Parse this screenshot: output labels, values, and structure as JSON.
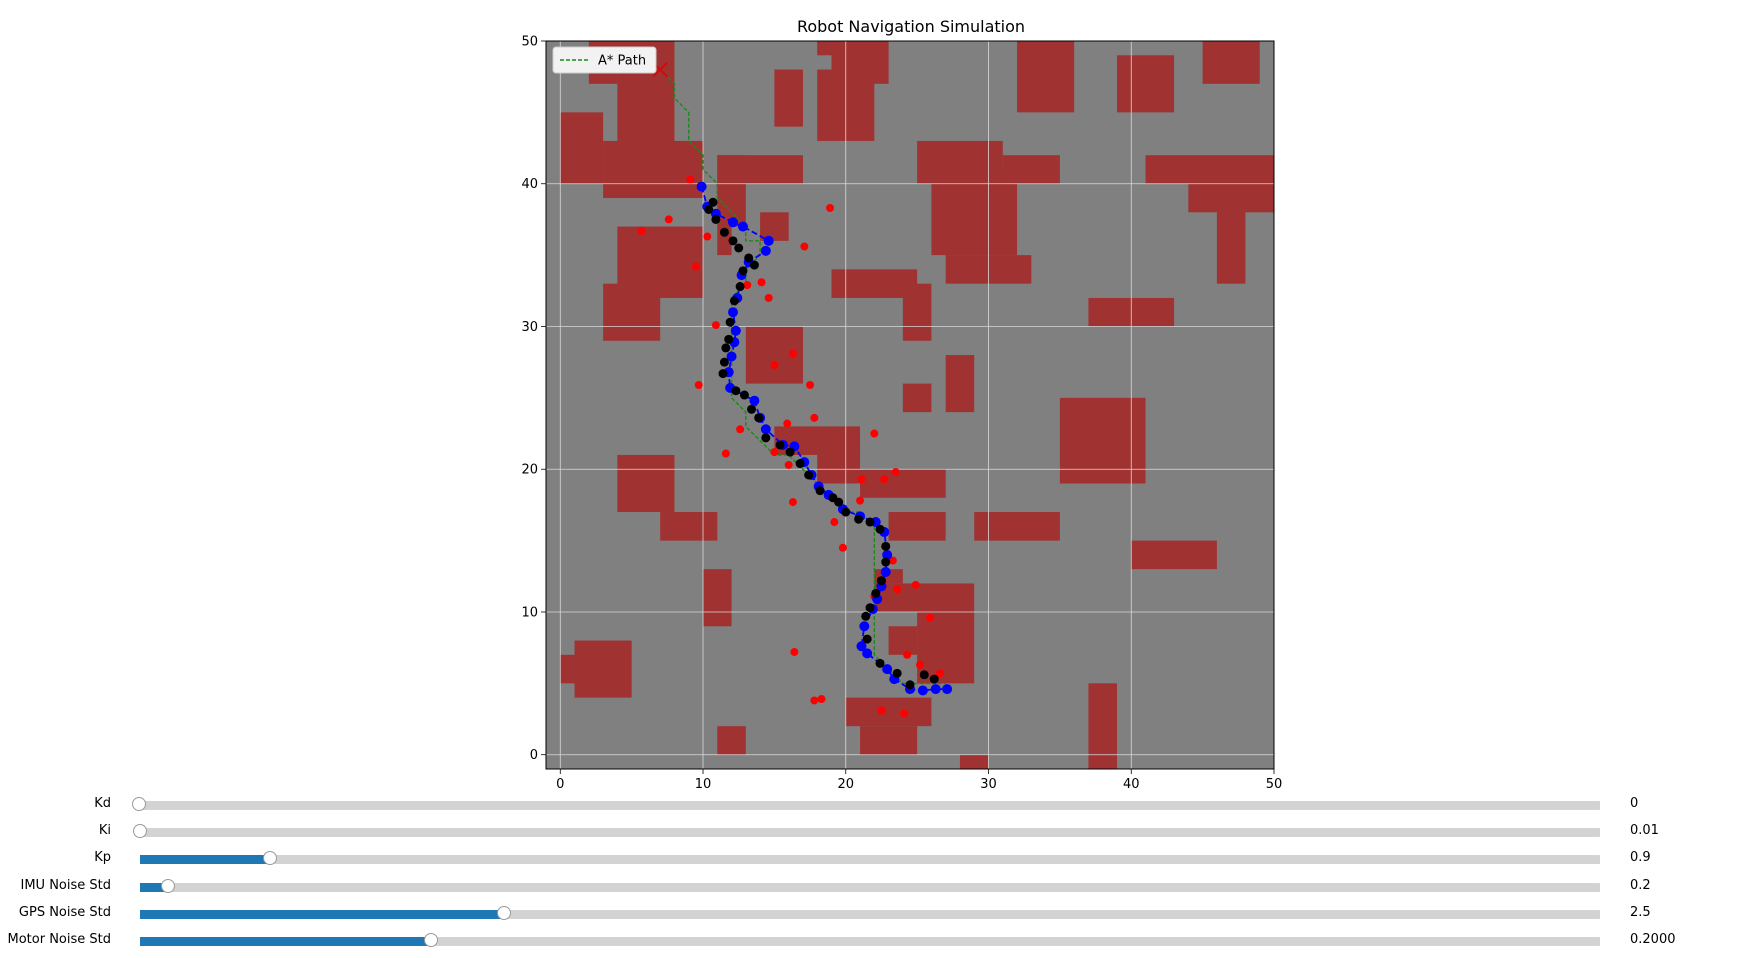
{
  "chart_data": {
    "type": "scatter",
    "title": "Robot Navigation Simulation",
    "xlim": [
      -1,
      50
    ],
    "ylim": [
      -1,
      50
    ],
    "x_ticks": [
      0,
      10,
      20,
      30,
      40,
      50
    ],
    "y_ticks": [
      0,
      10,
      20,
      30,
      40,
      50
    ],
    "grid": true,
    "background_color": "#808080",
    "legend": {
      "position": "top-left",
      "entries": [
        {
          "label": "A* Path",
          "style": "dashed-line",
          "color": "#1a8a1a"
        }
      ]
    },
    "colors": {
      "obstacle": "#a03232",
      "path": "#1a8a1a",
      "gps": "#ff0000",
      "estimate": "#0000ff",
      "true_pos": "#000000",
      "goal": "#e00000"
    },
    "obstacles": [
      [
        2,
        47,
        2,
        3
      ],
      [
        4,
        42,
        4,
        8
      ],
      [
        0,
        40,
        3,
        5
      ],
      [
        3,
        39,
        7,
        4
      ],
      [
        11,
        37,
        2,
        5
      ],
      [
        11,
        35,
        1,
        2
      ],
      [
        15,
        44,
        2,
        4
      ],
      [
        19,
        47,
        4,
        3
      ],
      [
        18,
        49,
        4,
        2
      ],
      [
        18,
        43,
        4,
        5
      ],
      [
        11,
        40,
        6,
        2
      ],
      [
        14,
        36,
        2,
        2
      ],
      [
        4,
        32,
        6,
        5
      ],
      [
        3,
        29,
        4,
        4
      ],
      [
        13,
        26,
        4,
        4
      ],
      [
        19,
        32,
        6,
        2
      ],
      [
        24,
        29,
        2,
        4
      ],
      [
        27,
        33,
        6,
        2
      ],
      [
        26,
        35,
        6,
        6
      ],
      [
        25,
        40,
        6,
        3
      ],
      [
        31,
        40,
        4,
        2
      ],
      [
        32,
        45,
        4,
        6
      ],
      [
        39,
        45,
        4,
        4
      ],
      [
        45,
        47,
        4,
        3
      ],
      [
        41,
        40,
        9,
        2
      ],
      [
        44,
        38,
        6,
        2
      ],
      [
        46,
        33,
        2,
        6
      ],
      [
        37,
        30,
        6,
        2
      ],
      [
        27,
        24,
        2,
        4
      ],
      [
        24,
        24,
        2,
        2
      ],
      [
        35,
        19,
        6,
        6
      ],
      [
        15,
        21,
        6,
        2
      ],
      [
        18,
        19,
        3,
        2
      ],
      [
        21,
        18,
        6,
        2
      ],
      [
        4,
        17,
        4,
        4
      ],
      [
        7,
        15,
        4,
        2
      ],
      [
        23,
        15,
        4,
        2
      ],
      [
        29,
        15,
        6,
        2
      ],
      [
        40,
        13,
        6,
        2
      ],
      [
        10,
        9,
        2,
        4
      ],
      [
        22,
        10,
        7,
        2
      ],
      [
        22,
        12,
        2,
        1
      ],
      [
        23,
        7,
        2,
        2
      ],
      [
        25,
        5,
        4,
        5
      ],
      [
        0,
        5,
        1,
        2
      ],
      [
        1,
        4,
        4,
        4
      ],
      [
        20,
        2,
        6,
        2
      ],
      [
        21,
        0,
        4,
        2
      ],
      [
        11,
        0,
        2,
        2
      ],
      [
        28,
        -1,
        2,
        1
      ],
      [
        37,
        -1,
        2,
        6
      ]
    ],
    "series": [
      {
        "name": "A* Path",
        "type": "dashed-line",
        "x": [
          7,
          8,
          8,
          9,
          9,
          10,
          10,
          11,
          11,
          12,
          13,
          13,
          14,
          14,
          13,
          13,
          12,
          12,
          12,
          12,
          12,
          13,
          13,
          14,
          15,
          16,
          17,
          18,
          19,
          20,
          21,
          22,
          22,
          22,
          22,
          22,
          22,
          22,
          23,
          24,
          25,
          26,
          27
        ],
        "y": [
          48,
          47,
          46,
          45,
          43,
          42,
          41,
          40,
          39,
          38,
          37,
          36,
          36,
          35,
          34,
          33,
          32,
          31,
          30,
          27,
          25,
          24,
          23,
          22,
          21,
          21,
          20,
          19,
          18,
          17,
          17,
          16,
          15,
          13,
          11,
          10,
          8,
          7,
          6,
          5,
          5,
          5,
          5
        ]
      },
      {
        "name": "",
        "type": "scatter",
        "color": "#ff0000",
        "x": [
          9.1,
          18.9,
          7.6,
          5.7,
          10.3,
          17.1,
          9.5,
          14.1,
          13.1,
          14.6,
          10.9,
          16.3,
          15.0,
          9.7,
          17.5,
          12.6,
          15.9,
          17.8,
          22.0,
          11.6,
          15.0,
          16.0,
          23.5,
          21.1,
          22.7,
          16.3,
          21.0,
          19.2,
          19.8,
          23.3,
          23.6,
          24.9,
          22.0,
          25.9,
          16.4,
          24.3,
          25.2,
          26.6,
          17.8,
          18.3,
          22.5,
          24.1
        ],
        "y": [
          40.3,
          38.3,
          37.5,
          36.7,
          36.3,
          35.6,
          34.2,
          33.1,
          32.9,
          32.0,
          30.1,
          28.1,
          27.3,
          25.9,
          25.9,
          22.8,
          23.2,
          23.6,
          22.5,
          21.1,
          21.2,
          20.3,
          19.8,
          19.3,
          19.3,
          17.7,
          17.8,
          16.3,
          14.5,
          13.6,
          11.6,
          11.9,
          11.1,
          9.6,
          7.2,
          7.0,
          6.3,
          5.7,
          3.8,
          3.9,
          3.1,
          2.9
        ]
      },
      {
        "name": "",
        "type": "scatter",
        "color": "#0000ff",
        "x": [
          9.9,
          10.3,
          10.9,
          12.1,
          12.8,
          14.6,
          14.4,
          13.2,
          12.7,
          12.4,
          12.1,
          12.3,
          12.2,
          12.0,
          11.8,
          11.9,
          13.6,
          14.0,
          14.4,
          15.6,
          16.4,
          17.1,
          17.6,
          18.1,
          18.8,
          19.8,
          21.0,
          22.1,
          22.7,
          22.9,
          22.8,
          22.5,
          22.2,
          21.9,
          21.3,
          21.1,
          21.5,
          22.9,
          23.4,
          24.5,
          25.4,
          26.3,
          27.1
        ],
        "y": [
          39.8,
          38.4,
          37.9,
          37.3,
          37.0,
          36.0,
          35.3,
          34.5,
          33.6,
          32.0,
          31.0,
          29.7,
          28.9,
          27.9,
          26.8,
          25.7,
          24.8,
          23.6,
          22.8,
          21.7,
          21.6,
          20.5,
          19.6,
          18.8,
          18.2,
          17.2,
          16.7,
          16.3,
          15.6,
          14.0,
          12.8,
          11.8,
          10.9,
          10.2,
          9.0,
          7.6,
          7.1,
          6.0,
          5.3,
          4.6,
          4.5,
          4.6,
          4.6
        ]
      },
      {
        "name": "",
        "type": "scatter",
        "color": "#000000",
        "x": [
          10.7,
          10.4,
          10.9,
          11.5,
          12.1,
          12.5,
          13.2,
          13.6,
          12.8,
          12.6,
          12.2,
          11.9,
          11.8,
          11.6,
          11.5,
          11.4,
          12.3,
          12.9,
          13.4,
          13.9,
          14.4,
          15.4,
          16.1,
          16.8,
          17.4,
          18.2,
          19.1,
          19.5,
          20.0,
          20.9,
          21.7,
          22.4,
          22.8,
          22.8,
          22.5,
          22.1,
          21.7,
          21.4,
          21.5,
          22.4,
          23.6,
          24.5,
          25.5,
          26.2
        ],
        "y": [
          38.7,
          38.2,
          37.5,
          36.6,
          36.0,
          35.5,
          34.8,
          34.3,
          33.9,
          32.8,
          31.8,
          30.3,
          29.1,
          28.5,
          27.5,
          26.7,
          25.5,
          25.2,
          24.2,
          23.6,
          22.2,
          21.7,
          21.2,
          20.4,
          19.6,
          18.5,
          18.0,
          17.7,
          17.0,
          16.5,
          16.3,
          15.8,
          14.6,
          13.5,
          12.2,
          11.3,
          10.3,
          9.7,
          8.1,
          6.4,
          5.7,
          4.9,
          5.6,
          5.3
        ]
      }
    ],
    "goal_marker": {
      "x": 7,
      "y": 48,
      "marker": "x"
    }
  },
  "sliders": [
    {
      "label": "Kd",
      "value": 0,
      "display": "0",
      "fill_fraction": 0.0
    },
    {
      "label": "Ki",
      "value": 0.01,
      "display": "0.01",
      "fill_fraction": 0.001
    },
    {
      "label": "Kp",
      "value": 0.9,
      "display": "0.9",
      "fill_fraction": 0.09
    },
    {
      "label": "IMU Noise Std",
      "value": 0.2,
      "display": "0.2",
      "fill_fraction": 0.02
    },
    {
      "label": "GPS Noise Std",
      "value": 2.5,
      "display": "2.5",
      "fill_fraction": 0.25
    },
    {
      "label": "Motor Noise Std",
      "value": 0.2,
      "display": "0.2000",
      "fill_fraction": 0.2
    }
  ]
}
